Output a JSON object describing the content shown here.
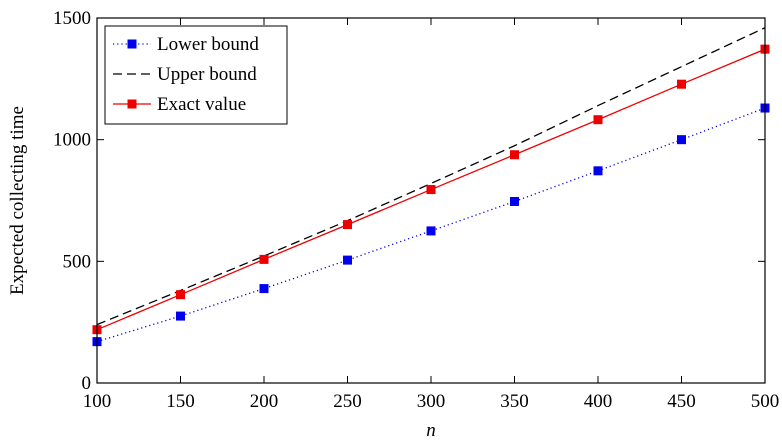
{
  "chart_data": {
    "type": "line",
    "title": "",
    "xlabel": "n",
    "ylabel": "Expected collecting time",
    "xlim": [
      100,
      500
    ],
    "ylim": [
      0,
      1500
    ],
    "xticks": [
      100,
      150,
      200,
      250,
      300,
      350,
      400,
      450,
      500
    ],
    "yticks": [
      0,
      500,
      1000,
      1500
    ],
    "grid": false,
    "legend": "top-left",
    "x": [
      100,
      150,
      200,
      250,
      300,
      350,
      400,
      450,
      500
    ],
    "series": [
      {
        "name": "Lower bound",
        "style": "dotted",
        "marker": "square",
        "color": "#0000ee",
        "values": [
          170,
          275,
          388,
          505,
          625,
          746,
          872,
          1000,
          1130
        ]
      },
      {
        "name": "Upper bound",
        "style": "dashed",
        "marker": "none",
        "color": "#000000",
        "values": [
          240,
          380,
          522,
          667,
          820,
          975,
          1140,
          1300,
          1460
        ]
      },
      {
        "name": "Exact value",
        "style": "solid",
        "marker": "square",
        "color": "#ee0000",
        "values": [
          219,
          363,
          508,
          651,
          795,
          938,
          1082,
          1228,
          1372
        ]
      }
    ]
  }
}
